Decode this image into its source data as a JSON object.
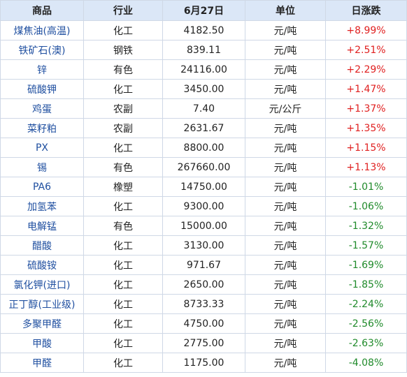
{
  "headers": [
    "商品",
    "行业",
    "6月27日",
    "单位",
    "日涨跌"
  ],
  "colors": {
    "header_bg": "#dbe7f7",
    "name": "#1f4fa0",
    "up": "#e02020",
    "down": "#1f8a2a"
  },
  "rows": [
    {
      "name": "煤焦油(高温)",
      "sector": "化工",
      "price": "4182.50",
      "unit": "元/吨",
      "change": "+8.99%",
      "dir": "up"
    },
    {
      "name": "铁矿石(澳)",
      "sector": "钢铁",
      "price": "839.11",
      "unit": "元/吨",
      "change": "+2.51%",
      "dir": "up"
    },
    {
      "name": "锌",
      "sector": "有色",
      "price": "24116.00",
      "unit": "元/吨",
      "change": "+2.29%",
      "dir": "up"
    },
    {
      "name": "硫酸钾",
      "sector": "化工",
      "price": "3450.00",
      "unit": "元/吨",
      "change": "+1.47%",
      "dir": "up"
    },
    {
      "name": "鸡蛋",
      "sector": "农副",
      "price": "7.40",
      "unit": "元/公斤",
      "change": "+1.37%",
      "dir": "up"
    },
    {
      "name": "菜籽粕",
      "sector": "农副",
      "price": "2631.67",
      "unit": "元/吨",
      "change": "+1.35%",
      "dir": "up"
    },
    {
      "name": "PX",
      "sector": "化工",
      "price": "8800.00",
      "unit": "元/吨",
      "change": "+1.15%",
      "dir": "up"
    },
    {
      "name": "锡",
      "sector": "有色",
      "price": "267660.00",
      "unit": "元/吨",
      "change": "+1.13%",
      "dir": "up"
    },
    {
      "name": "PA6",
      "sector": "橡塑",
      "price": "14750.00",
      "unit": "元/吨",
      "change": "-1.01%",
      "dir": "down"
    },
    {
      "name": "加氢苯",
      "sector": "化工",
      "price": "9300.00",
      "unit": "元/吨",
      "change": "-1.06%",
      "dir": "down"
    },
    {
      "name": "电解锰",
      "sector": "有色",
      "price": "15000.00",
      "unit": "元/吨",
      "change": "-1.32%",
      "dir": "down"
    },
    {
      "name": "醋酸",
      "sector": "化工",
      "price": "3130.00",
      "unit": "元/吨",
      "change": "-1.57%",
      "dir": "down"
    },
    {
      "name": "硫酸铵",
      "sector": "化工",
      "price": "971.67",
      "unit": "元/吨",
      "change": "-1.69%",
      "dir": "down"
    },
    {
      "name": "氯化钾(进口)",
      "sector": "化工",
      "price": "2650.00",
      "unit": "元/吨",
      "change": "-1.85%",
      "dir": "down"
    },
    {
      "name": "正丁醇(工业级)",
      "sector": "化工",
      "price": "8733.33",
      "unit": "元/吨",
      "change": "-2.24%",
      "dir": "down"
    },
    {
      "name": "多聚甲醛",
      "sector": "化工",
      "price": "4750.00",
      "unit": "元/吨",
      "change": "-2.56%",
      "dir": "down"
    },
    {
      "name": "甲酸",
      "sector": "化工",
      "price": "2775.00",
      "unit": "元/吨",
      "change": "-2.63%",
      "dir": "down"
    },
    {
      "name": "甲醛",
      "sector": "化工",
      "price": "1175.00",
      "unit": "元/吨",
      "change": "-4.08%",
      "dir": "down"
    }
  ]
}
